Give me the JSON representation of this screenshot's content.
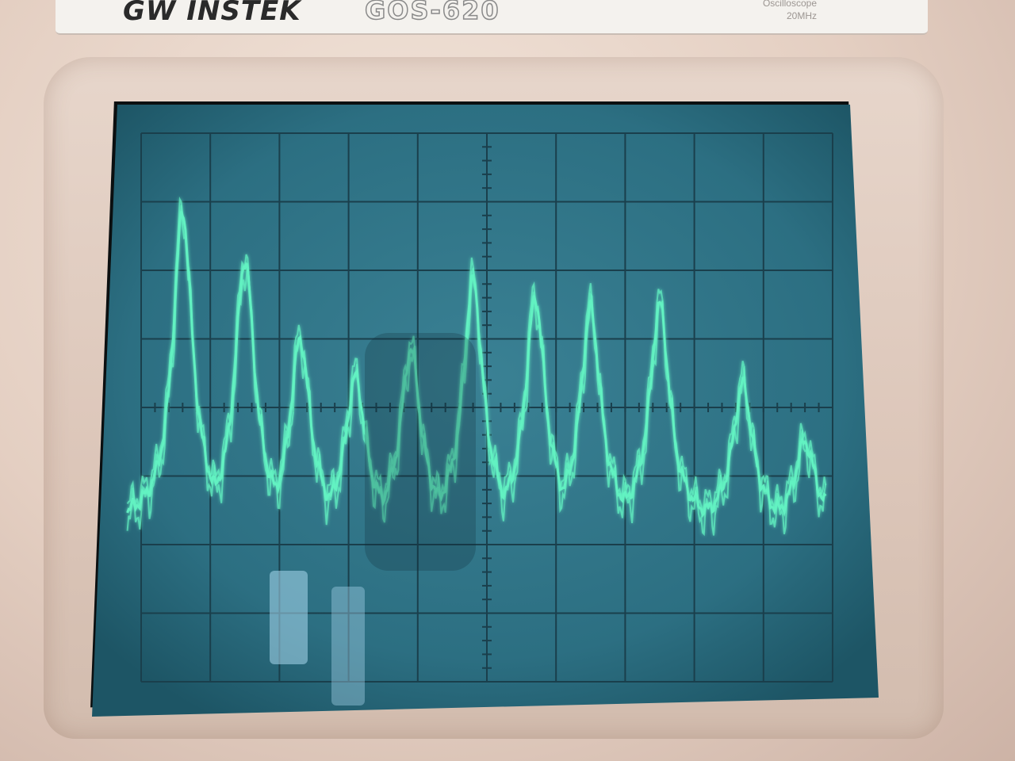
{
  "bezel": {
    "brand": "GW INSTEK",
    "model": "GOS-620",
    "subtitle_line1": "Oscilloscope",
    "subtitle_line2": "20MHz"
  },
  "colors": {
    "screen_background": "#2c6f82",
    "graticule": "#1a3f4c",
    "trace": "#63f2c2",
    "bezel": "#e2cdc1"
  },
  "chart_data": {
    "type": "line",
    "grid_divisions": {
      "x": 10,
      "y": 8
    },
    "peaks_x_div": [
      0.6,
      1.5,
      2.3,
      3.1,
      3.9,
      4.8,
      5.7,
      6.5,
      7.5,
      8.7,
      9.6
    ],
    "peaks_y_div": [
      2.85,
      2.15,
      1.0,
      0.45,
      0.85,
      1.85,
      1.6,
      1.45,
      1.5,
      0.35,
      -0.5
    ],
    "baseline_y_div": -1.7
  }
}
